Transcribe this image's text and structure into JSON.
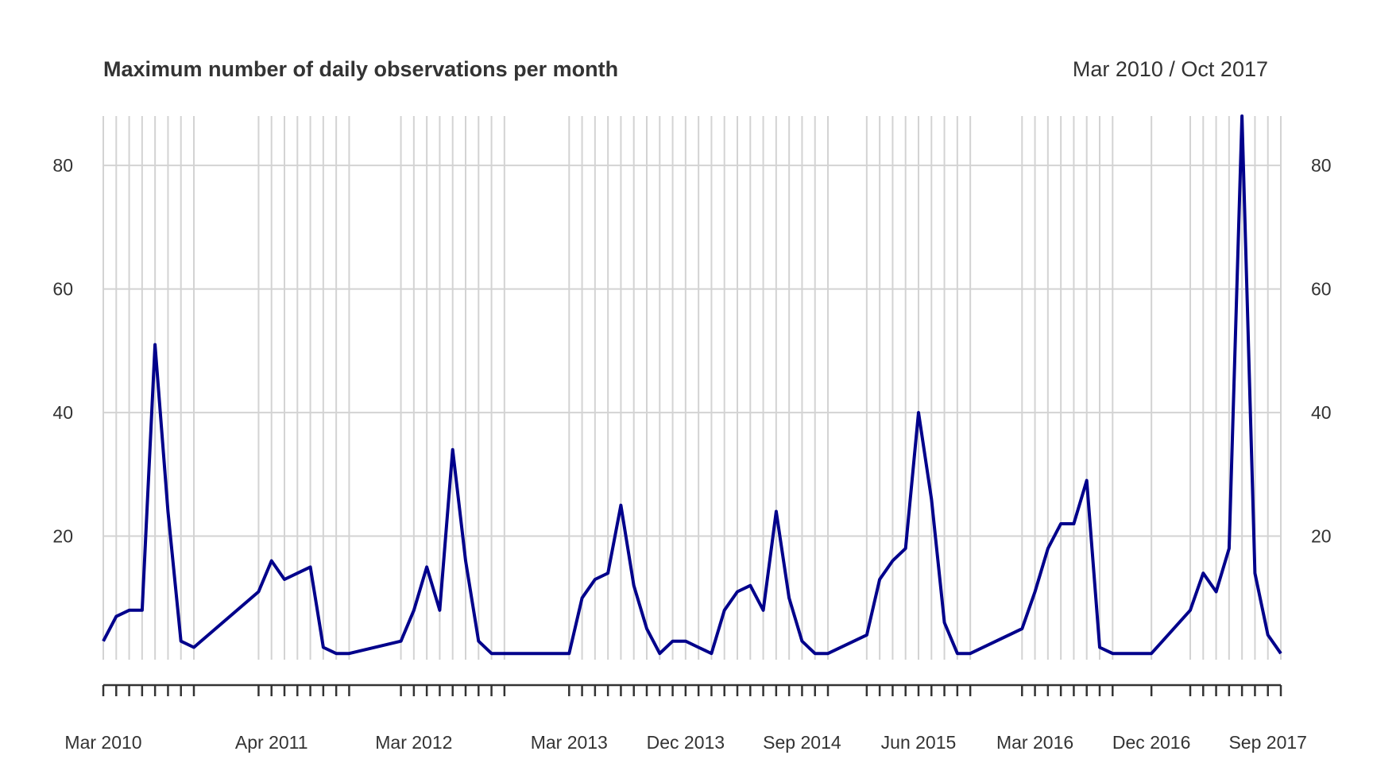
{
  "chart_data": {
    "type": "line",
    "title": "Maximum number of daily observations per month",
    "range_label": "Mar 2010 / Oct 2017",
    "xlabel": "",
    "ylabel": "",
    "ylim": [
      0,
      88
    ],
    "y_ticks": [
      20,
      40,
      60,
      80
    ],
    "grid": true,
    "x_tick_labels": [
      "Mar 2010",
      "Apr 2011",
      "Mar 2012",
      "Mar 2013",
      "Dec 2013",
      "Sep 2014",
      "Jun 2015",
      "Mar 2016",
      "Dec 2016",
      "Sep 2017"
    ],
    "x_tick_label_dates": [
      "2010-03",
      "2011-04",
      "2012-03",
      "2013-03",
      "2013-12",
      "2014-09",
      "2015-06",
      "2016-03",
      "2016-12",
      "2017-09"
    ],
    "colors": {
      "line": "#00008b",
      "grid": "#d3d3d3"
    },
    "series": [
      {
        "x": [
          "2010-03",
          "2010-04",
          "2010-05",
          "2010-06",
          "2010-07",
          "2010-08",
          "2010-09",
          "2010-10",
          "2011-03",
          "2011-04",
          "2011-05",
          "2011-06",
          "2011-07",
          "2011-08",
          "2011-09",
          "2011-10",
          "2012-02",
          "2012-03",
          "2012-04",
          "2012-05",
          "2012-06",
          "2012-07",
          "2012-08",
          "2012-09",
          "2012-10",
          "2013-03",
          "2013-04",
          "2013-05",
          "2013-06",
          "2013-07",
          "2013-08",
          "2013-09",
          "2013-10",
          "2013-11",
          "2013-12",
          "2014-01",
          "2014-02",
          "2014-03",
          "2014-04",
          "2014-05",
          "2014-06",
          "2014-07",
          "2014-08",
          "2014-09",
          "2014-10",
          "2014-11",
          "2015-02",
          "2015-03",
          "2015-04",
          "2015-05",
          "2015-06",
          "2015-07",
          "2015-08",
          "2015-09",
          "2015-10",
          "2016-02",
          "2016-03",
          "2016-04",
          "2016-05",
          "2016-06",
          "2016-07",
          "2016-08",
          "2016-09",
          "2016-12",
          "2017-03",
          "2017-04",
          "2017-05",
          "2017-06",
          "2017-07",
          "2017-08",
          "2017-09",
          "2017-10"
        ],
        "values": [
          3,
          7,
          8,
          8,
          51,
          24,
          3,
          2,
          11,
          16,
          13,
          14,
          15,
          2,
          1,
          1,
          3,
          8,
          15,
          8,
          34,
          16,
          3,
          1,
          1,
          1,
          10,
          13,
          14,
          25,
          12,
          5,
          1,
          3,
          3,
          2,
          1,
          8,
          11,
          12,
          8,
          24,
          10,
          3,
          1,
          1,
          4,
          13,
          16,
          18,
          40,
          26,
          6,
          1,
          1,
          5,
          11,
          18,
          22,
          22,
          29,
          2,
          1,
          1,
          8,
          14,
          11,
          18,
          88,
          14,
          4,
          1
        ]
      }
    ]
  }
}
